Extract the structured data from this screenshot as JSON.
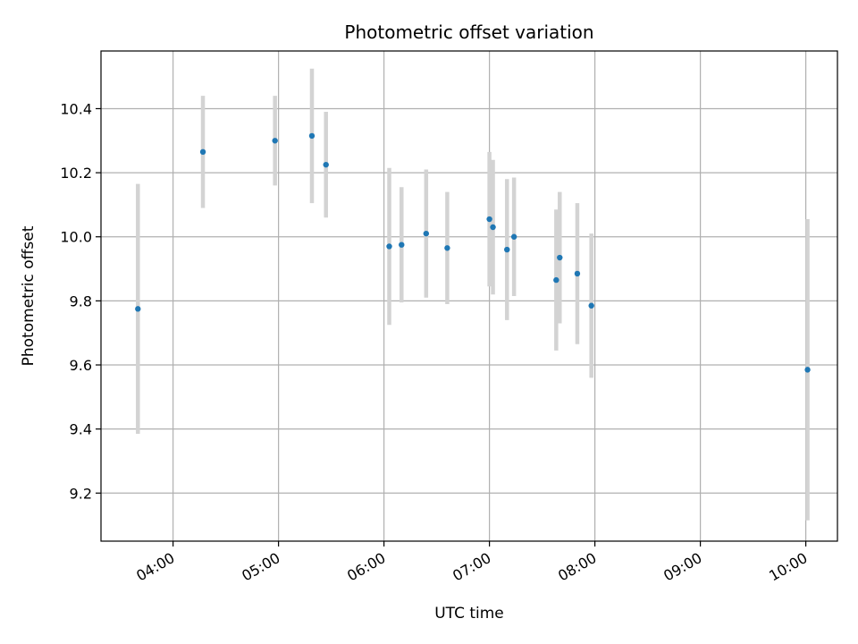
{
  "chart_data": {
    "type": "scatter",
    "title": "Photometric offset variation",
    "xlabel": "UTC time",
    "ylabel": "Photometric offset",
    "x_ticks": [
      "04:00",
      "05:00",
      "06:00",
      "07:00",
      "08:00",
      "09:00",
      "10:00"
    ],
    "y_ticks": [
      "9.2",
      "9.4",
      "9.6",
      "9.8",
      "10.0",
      "10.2",
      "10.4"
    ],
    "xlim": [
      "03:19",
      "10:18"
    ],
    "ylim": [
      9.05,
      10.58
    ],
    "grid": true,
    "marker_color": "#1f77b4",
    "errorbar_color": "#d3d3d3",
    "points": [
      {
        "x": "03:40",
        "y": 9.775,
        "err": 0.39
      },
      {
        "x": "04:17",
        "y": 10.265,
        "err": 0.175
      },
      {
        "x": "04:58",
        "y": 10.3,
        "err": 0.14
      },
      {
        "x": "05:19",
        "y": 10.315,
        "err": 0.21
      },
      {
        "x": "05:27",
        "y": 10.225,
        "err": 0.165
      },
      {
        "x": "06:03",
        "y": 9.97,
        "err": 0.245
      },
      {
        "x": "06:10",
        "y": 9.975,
        "err": 0.18
      },
      {
        "x": "06:24",
        "y": 10.01,
        "err": 0.2
      },
      {
        "x": "06:36",
        "y": 9.965,
        "err": 0.175
      },
      {
        "x": "07:00",
        "y": 10.055,
        "err": 0.21
      },
      {
        "x": "07:02",
        "y": 10.03,
        "err": 0.21
      },
      {
        "x": "07:10",
        "y": 9.96,
        "err": 0.22
      },
      {
        "x": "07:14",
        "y": 10.0,
        "err": 0.185
      },
      {
        "x": "07:38",
        "y": 9.865,
        "err": 0.22
      },
      {
        "x": "07:40",
        "y": 9.935,
        "err": 0.205
      },
      {
        "x": "07:50",
        "y": 9.885,
        "err": 0.22
      },
      {
        "x": "07:58",
        "y": 9.785,
        "err": 0.225
      },
      {
        "x": "10:01",
        "y": 9.585,
        "err": 0.47
      }
    ]
  }
}
